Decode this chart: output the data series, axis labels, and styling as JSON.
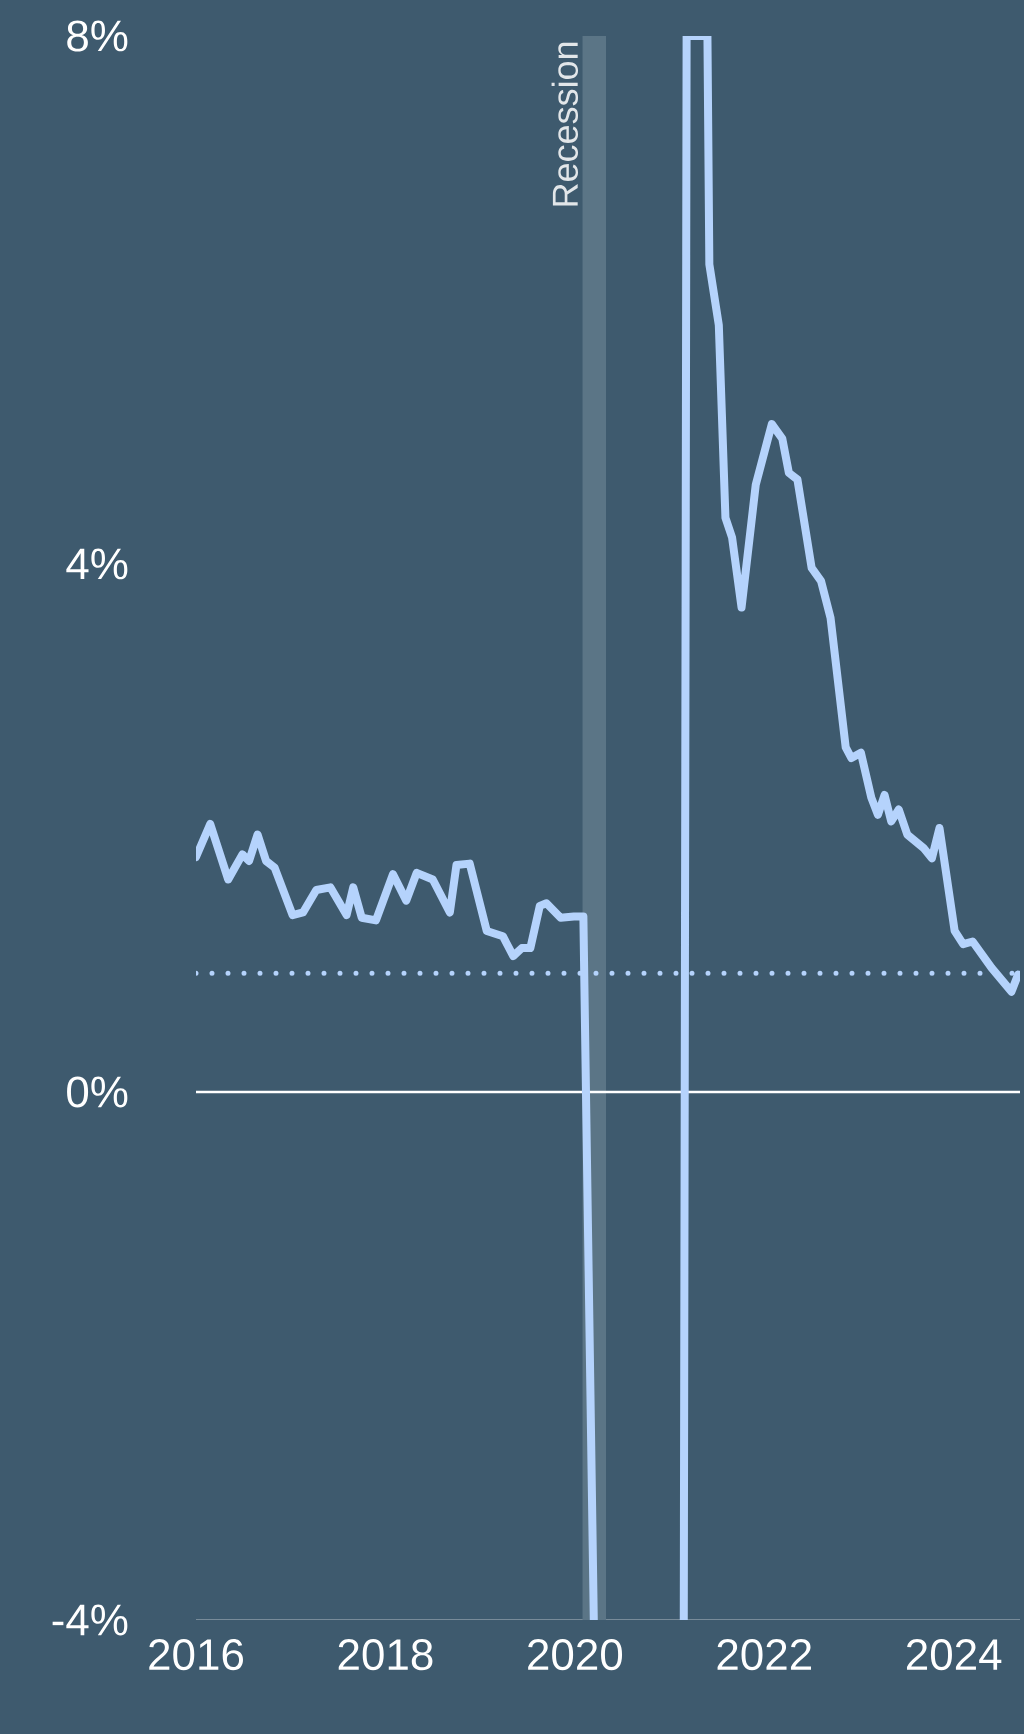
{
  "chart_data": {
    "type": "line",
    "x": [
      2016.0,
      2016.15,
      2016.34,
      2016.49,
      2016.56,
      2016.65,
      2016.74,
      2016.83,
      2017.02,
      2017.13,
      2017.27,
      2017.42,
      2017.59,
      2017.66,
      2017.75,
      2017.9,
      2018.08,
      2018.22,
      2018.33,
      2018.5,
      2018.68,
      2018.75,
      2018.89,
      2019.07,
      2019.24,
      2019.35,
      2019.44,
      2019.53,
      2019.63,
      2019.7,
      2019.85,
      2019.99,
      2020.09,
      2020.2,
      2020.6,
      2021.15,
      2021.18,
      2021.4,
      2021.42,
      2021.52,
      2021.59,
      2021.66,
      2021.76,
      2021.91,
      2022.08,
      2022.19,
      2022.26,
      2022.35,
      2022.5,
      2022.6,
      2022.7,
      2022.86,
      2022.92,
      2023.02,
      2023.13,
      2023.2,
      2023.27,
      2023.34,
      2023.42,
      2023.51,
      2023.68,
      2023.77,
      2023.85,
      2024.01,
      2024.1,
      2024.2,
      2024.4,
      2024.61,
      2024.68
    ],
    "series": [
      {
        "color": "#b5d3fc",
        "values": [
          1.78,
          2.03,
          1.61,
          1.8,
          1.75,
          1.95,
          1.75,
          1.7,
          1.34,
          1.36,
          1.53,
          1.55,
          1.34,
          1.55,
          1.32,
          1.3,
          1.65,
          1.45,
          1.66,
          1.61,
          1.36,
          1.72,
          1.73,
          1.22,
          1.18,
          1.03,
          1.09,
          1.09,
          1.41,
          1.43,
          1.32,
          1.33,
          1.33,
          -4,
          null,
          -4,
          8,
          8,
          6.27,
          5.81,
          4.35,
          4.2,
          3.67,
          4.6,
          5.06,
          4.95,
          4.69,
          4.64,
          3.97,
          3.87,
          3.59,
          2.61,
          2.53,
          2.57,
          2.23,
          2.1,
          2.25,
          2.05,
          2.14,
          1.95,
          1.85,
          1.77,
          2.0,
          1.22,
          1.12,
          1.14,
          0.94,
          0.76,
          0.89
        ]
      }
    ],
    "xlim": [
      2016,
      2024.7
    ],
    "ylim": [
      -4,
      8
    ],
    "xticks": [
      2016,
      2018,
      2020,
      2022,
      2024
    ],
    "yticks": [
      {
        "value": -4,
        "label": "-4%"
      },
      {
        "value": 0,
        "label": "0%"
      },
      {
        "value": 4,
        "label": "4%"
      },
      {
        "value": 8,
        "label": "8%"
      }
    ],
    "ref_lines": [
      {
        "axis": "y",
        "value": 0,
        "color": "#ffffff",
        "line_style": "solid"
      },
      {
        "axis": "y",
        "value": 0.9,
        "color": "#b5d3fc",
        "line_style": "dotted"
      }
    ],
    "bands": [
      {
        "axis": "x",
        "from": 2020.08,
        "to": 2020.33,
        "label": "Recession",
        "color": "#5b7586"
      }
    ],
    "line_style": "solid"
  }
}
